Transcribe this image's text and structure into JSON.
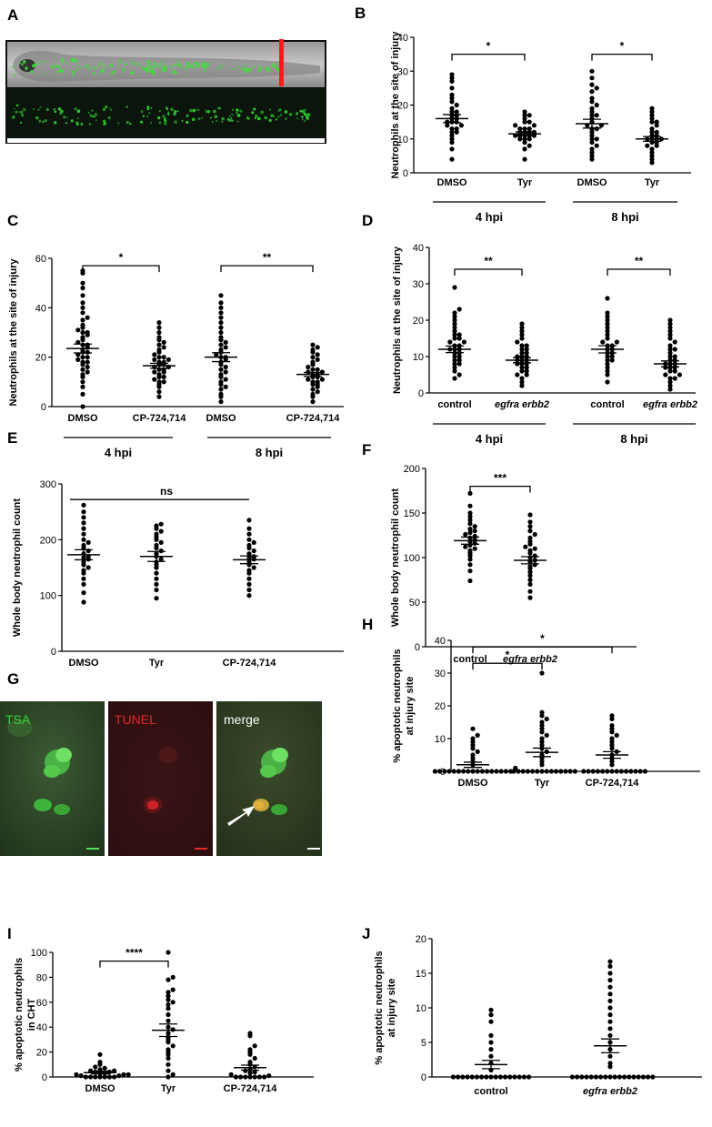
{
  "panel_labels": [
    "A",
    "B",
    "C",
    "D",
    "E",
    "F",
    "G",
    "H",
    "I",
    "J"
  ],
  "microscopy": {
    "labels": [
      {
        "text": "TSA",
        "color": "#39d13b"
      },
      {
        "text": "TUNEL",
        "color": "#e02a2a"
      },
      {
        "text": "merge",
        "color": "#ffffff"
      }
    ]
  },
  "chart_data": [
    {
      "panel": "B",
      "type": "scatter",
      "ylabel": "Neutrophils at the site of injury",
      "ylim": [
        0,
        40
      ],
      "yticks": [
        0,
        10,
        20,
        30,
        40
      ],
      "categories": [
        "DMSO",
        "Tyr",
        "DMSO",
        "Tyr"
      ],
      "groups": [
        "4 hpi",
        "8 hpi"
      ],
      "series": [
        {
          "category": "DMSO",
          "group": "4 hpi",
          "mean": 16,
          "sem": 1.2,
          "values": [
            4,
            7,
            9,
            10,
            11,
            12,
            12,
            13,
            13,
            14,
            14,
            15,
            15,
            15,
            16,
            16,
            17,
            17,
            18,
            18,
            19,
            20,
            21,
            22,
            23,
            25,
            27,
            28,
            29
          ]
        },
        {
          "category": "Tyr",
          "group": "4 hpi",
          "mean": 11.5,
          "sem": 0.6,
          "values": [
            4,
            7,
            8,
            9,
            10,
            10,
            10,
            11,
            11,
            11,
            11,
            11,
            12,
            12,
            12,
            12,
            13,
            13,
            13,
            14,
            14,
            15,
            15,
            16,
            17,
            17,
            18
          ]
        },
        {
          "category": "DMSO",
          "group": "8 hpi",
          "mean": 14.5,
          "sem": 1.3,
          "values": [
            4,
            5,
            6,
            7,
            8,
            9,
            10,
            10,
            11,
            12,
            13,
            13,
            14,
            14,
            15,
            16,
            17,
            17,
            18,
            19,
            20,
            21,
            22,
            24,
            25,
            26,
            28,
            30
          ]
        },
        {
          "category": "Tyr",
          "group": "8 hpi",
          "mean": 10,
          "sem": 0.7,
          "values": [
            3,
            4,
            5,
            6,
            7,
            8,
            8,
            9,
            9,
            10,
            10,
            10,
            10,
            11,
            11,
            12,
            12,
            13,
            14,
            15,
            15,
            16,
            17,
            18,
            19
          ]
        }
      ],
      "significance": [
        {
          "from": 0,
          "to": 1,
          "label": "*",
          "y": 35
        },
        {
          "from": 2,
          "to": 3,
          "label": "*",
          "y": 35
        }
      ]
    },
    {
      "panel": "C",
      "type": "scatter",
      "ylabel": "Neutrophils at the site of injury",
      "ylim": [
        0,
        60
      ],
      "yticks": [
        0,
        20,
        40,
        60
      ],
      "categories": [
        "DMSO",
        "CP-724,714",
        "DMSO",
        "CP-724,714"
      ],
      "groups": [
        "4 hpi",
        "8 hpi"
      ],
      "series": [
        {
          "category": "DMSO",
          "group": "4 hpi",
          "mean": 23.5,
          "sem": 1.8,
          "values": [
            0,
            5,
            8,
            10,
            12,
            13,
            14,
            15,
            16,
            17,
            18,
            18,
            19,
            20,
            20,
            21,
            22,
            22,
            23,
            24,
            25,
            25,
            26,
            27,
            28,
            29,
            30,
            30,
            31,
            32,
            33,
            35,
            36,
            38,
            40,
            42,
            45,
            48,
            50,
            54,
            55
          ]
        },
        {
          "category": "CP-724,714",
          "group": "4 hpi",
          "mean": 16.5,
          "sem": 1.0,
          "values": [
            4,
            6,
            8,
            9,
            10,
            10,
            11,
            12,
            12,
            13,
            14,
            14,
            15,
            15,
            16,
            16,
            17,
            17,
            18,
            18,
            19,
            19,
            20,
            20,
            21,
            22,
            23,
            24,
            25,
            26,
            27,
            28,
            30,
            32,
            34
          ]
        },
        {
          "category": "DMSO",
          "group": "8 hpi",
          "mean": 20,
          "sem": 1.8,
          "values": [
            2,
            4,
            5,
            7,
            8,
            9,
            10,
            11,
            12,
            13,
            14,
            15,
            16,
            17,
            18,
            19,
            20,
            20,
            21,
            22,
            23,
            24,
            25,
            26,
            27,
            28,
            30,
            32,
            34,
            36,
            38,
            40,
            42,
            45
          ]
        },
        {
          "category": "CP-724,714",
          "group": "8 hpi",
          "mean": 13,
          "sem": 0.8,
          "values": [
            2,
            4,
            5,
            6,
            7,
            8,
            9,
            9,
            10,
            10,
            11,
            11,
            12,
            12,
            13,
            13,
            14,
            14,
            15,
            15,
            16,
            17,
            18,
            19,
            20,
            21,
            22,
            23,
            24,
            25
          ]
        }
      ],
      "significance": [
        {
          "from": 0,
          "to": 1,
          "label": "*",
          "y": 57
        },
        {
          "from": 2,
          "to": 3,
          "label": "**",
          "y": 57
        }
      ]
    },
    {
      "panel": "D",
      "type": "scatter",
      "ylabel": "Neutrophils at the site of injury",
      "ylim": [
        0,
        40
      ],
      "yticks": [
        0,
        10,
        20,
        30,
        40
      ],
      "categories": [
        "control",
        "egfra erbb2",
        "control",
        "egfra erbb2"
      ],
      "groups": [
        "4 hpi",
        "8 hpi"
      ],
      "series": [
        {
          "category": "control",
          "group": "4 hpi",
          "mean": 12,
          "sem": 0.9,
          "values": [
            4,
            5,
            6,
            7,
            8,
            8,
            9,
            9,
            10,
            10,
            11,
            11,
            12,
            12,
            12,
            13,
            13,
            14,
            14,
            15,
            15,
            16,
            16,
            17,
            18,
            19,
            20,
            21,
            22,
            23,
            29
          ]
        },
        {
          "category": "egfra erbb2",
          "group": "4 hpi",
          "mean": 9,
          "sem": 0.7,
          "values": [
            2,
            3,
            4,
            5,
            5,
            6,
            6,
            7,
            7,
            8,
            8,
            8,
            9,
            9,
            9,
            10,
            10,
            10,
            11,
            11,
            12,
            12,
            13,
            13,
            14,
            15,
            16,
            17,
            18,
            19
          ]
        },
        {
          "category": "control",
          "group": "8 hpi",
          "mean": 12,
          "sem": 1.0,
          "values": [
            3,
            5,
            6,
            7,
            8,
            9,
            9,
            10,
            10,
            11,
            11,
            12,
            12,
            13,
            13,
            14,
            14,
            15,
            16,
            17,
            18,
            19,
            20,
            21,
            22,
            26
          ]
        },
        {
          "category": "egfra erbb2",
          "group": "8 hpi",
          "mean": 8,
          "sem": 0.8,
          "values": [
            1,
            2,
            3,
            4,
            4,
            5,
            5,
            6,
            6,
            7,
            7,
            7,
            8,
            8,
            8,
            9,
            9,
            10,
            10,
            11,
            12,
            12,
            13,
            14,
            15,
            16,
            17,
            18,
            19,
            20
          ]
        }
      ],
      "significance": [
        {
          "from": 0,
          "to": 1,
          "label": "**",
          "y": 34
        },
        {
          "from": 2,
          "to": 3,
          "label": "**",
          "y": 34
        }
      ]
    },
    {
      "panel": "E",
      "type": "scatter",
      "ylabel": "Whole body neutrophil count",
      "ylim": [
        0,
        300
      ],
      "yticks": [
        0,
        100,
        200,
        300
      ],
      "categories": [
        "DMSO",
        "Tyr",
        "CP-724,714"
      ],
      "groups": [],
      "series": [
        {
          "category": "DMSO",
          "mean": 173,
          "sem": 9,
          "values": [
            88,
            105,
            120,
            130,
            140,
            145,
            150,
            155,
            160,
            165,
            168,
            170,
            175,
            180,
            185,
            190,
            195,
            200,
            210,
            220,
            230,
            240,
            250,
            262
          ]
        },
        {
          "category": "Tyr",
          "mean": 170,
          "sem": 9,
          "values": [
            95,
            110,
            120,
            130,
            140,
            150,
            155,
            160,
            165,
            170,
            175,
            180,
            185,
            190,
            195,
            200,
            205,
            210,
            215,
            220,
            225,
            228
          ]
        },
        {
          "category": "CP-724,714",
          "mean": 164,
          "sem": 7,
          "values": [
            100,
            110,
            120,
            130,
            140,
            145,
            150,
            155,
            160,
            165,
            168,
            170,
            175,
            180,
            185,
            190,
            195,
            200,
            210,
            220,
            235
          ]
        }
      ],
      "significance": [
        {
          "from": 0,
          "to": 2,
          "label": "ns",
          "y": 272
        }
      ]
    },
    {
      "panel": "F",
      "type": "scatter",
      "ylabel": "Whole body neutrophil count",
      "ylim": [
        0,
        200
      ],
      "yticks": [
        0,
        50,
        100,
        150,
        200
      ],
      "categories": [
        "control",
        "egfra erbb2"
      ],
      "groups": [],
      "series": [
        {
          "category": "control",
          "mean": 119,
          "sem": 4,
          "values": [
            74,
            85,
            92,
            98,
            102,
            105,
            108,
            110,
            112,
            114,
            116,
            118,
            120,
            122,
            124,
            126,
            128,
            130,
            132,
            135,
            138,
            142,
            146,
            150,
            158,
            172
          ]
        },
        {
          "category": "egfra erbb2",
          "mean": 97,
          "sem": 4,
          "values": [
            55,
            62,
            70,
            75,
            80,
            84,
            88,
            90,
            92,
            95,
            97,
            100,
            102,
            105,
            108,
            110,
            112,
            115,
            118,
            122,
            126,
            130,
            135,
            140,
            148
          ]
        }
      ],
      "significance": [
        {
          "from": 0,
          "to": 1,
          "label": "***",
          "y": 180
        }
      ]
    },
    {
      "panel": "H",
      "type": "scatter",
      "ylabel": "% apoptotic neutrophils at injury site",
      "ylim": [
        0,
        40
      ],
      "yticks": [
        0,
        10,
        20,
        30,
        40
      ],
      "categories": [
        "DMSO",
        "Tyr",
        "CP-724,714"
      ],
      "groups": [],
      "series": [
        {
          "category": "DMSO",
          "mean": 2,
          "sem": 0.8,
          "values": [
            0,
            0,
            0,
            0,
            0,
            0,
            0,
            0,
            0,
            0,
            0,
            0,
            0,
            0,
            0,
            0,
            0,
            1,
            2,
            3,
            4,
            5,
            6,
            7,
            8,
            9,
            10,
            11,
            13
          ]
        },
        {
          "category": "Tyr",
          "mean": 5.8,
          "sem": 1.3,
          "values": [
            0,
            0,
            0,
            0,
            0,
            0,
            0,
            0,
            0,
            0,
            0,
            0,
            0,
            0,
            2,
            3,
            4,
            5,
            6,
            7,
            8,
            9,
            10,
            11,
            12,
            13,
            14,
            15,
            16,
            17,
            18,
            30
          ]
        },
        {
          "category": "CP-724,714",
          "mean": 5,
          "sem": 1.0,
          "values": [
            0,
            0,
            0,
            0,
            0,
            0,
            0,
            0,
            0,
            0,
            0,
            0,
            0,
            0,
            2,
            3,
            4,
            5,
            6,
            7,
            8,
            9,
            10,
            11,
            12,
            13,
            14,
            16,
            17
          ]
        }
      ],
      "significance": [
        {
          "from": 0,
          "to": 1,
          "label": "*",
          "y": 33
        },
        {
          "from": 0,
          "to": 2,
          "label": "*",
          "y": 38
        }
      ]
    },
    {
      "panel": "I",
      "type": "scatter",
      "ylabel": "% apoptotic neutrophils in CHT",
      "ylim": [
        0,
        100
      ],
      "yticks": [
        0,
        20,
        40,
        60,
        80,
        100
      ],
      "categories": [
        "DMSO",
        "Tyr",
        "CP-724,714"
      ],
      "groups": [],
      "series": [
        {
          "category": "DMSO",
          "mean": 3.5,
          "sem": 1.0,
          "values": [
            0,
            0,
            0,
            0,
            0,
            0,
            0,
            1,
            1,
            2,
            2,
            2,
            3,
            3,
            4,
            4,
            5,
            5,
            6,
            7,
            8,
            10,
            12,
            18
          ]
        },
        {
          "category": "Tyr",
          "mean": 37.5,
          "sem": 5,
          "values": [
            0,
            2,
            5,
            10,
            15,
            18,
            20,
            22,
            25,
            28,
            30,
            32,
            35,
            38,
            40,
            45,
            50,
            55,
            58,
            60,
            62,
            65,
            68,
            70,
            78,
            80,
            100
          ]
        },
        {
          "category": "CP-724,714",
          "mean": 7.5,
          "sem": 2,
          "values": [
            0,
            0,
            0,
            0,
            0,
            0,
            0,
            1,
            2,
            3,
            4,
            5,
            6,
            8,
            10,
            12,
            15,
            18,
            20,
            22,
            25,
            33,
            35
          ]
        }
      ],
      "significance": [
        {
          "from": 0,
          "to": 1,
          "label": "****",
          "y": 93
        }
      ]
    },
    {
      "panel": "J",
      "type": "scatter",
      "ylabel": "% apoptotic neutrophils at injury site",
      "ylim": [
        0,
        20
      ],
      "yticks": [
        0,
        5,
        10,
        15,
        20
      ],
      "categories": [
        "control",
        "egfra erbb2"
      ],
      "groups": [],
      "series": [
        {
          "category": "control",
          "mean": 1.8,
          "sem": 0.6,
          "values": [
            0,
            0,
            0,
            0,
            0,
            0,
            0,
            0,
            0,
            0,
            0,
            0,
            0,
            0,
            0,
            0,
            0,
            1,
            2,
            3,
            4,
            5,
            6,
            8,
            9,
            9.7
          ]
        },
        {
          "category": "egfra erbb2",
          "mean": 4.5,
          "sem": 1.0,
          "values": [
            0,
            0,
            0,
            0,
            0,
            0,
            0,
            0,
            0,
            0,
            0,
            0,
            0,
            0,
            0,
            0,
            0,
            0,
            1.5,
            2,
            3,
            4,
            5,
            6,
            7,
            8,
            9,
            10,
            11,
            12,
            13,
            14,
            15,
            16,
            16.7
          ]
        }
      ],
      "significance": []
    }
  ]
}
